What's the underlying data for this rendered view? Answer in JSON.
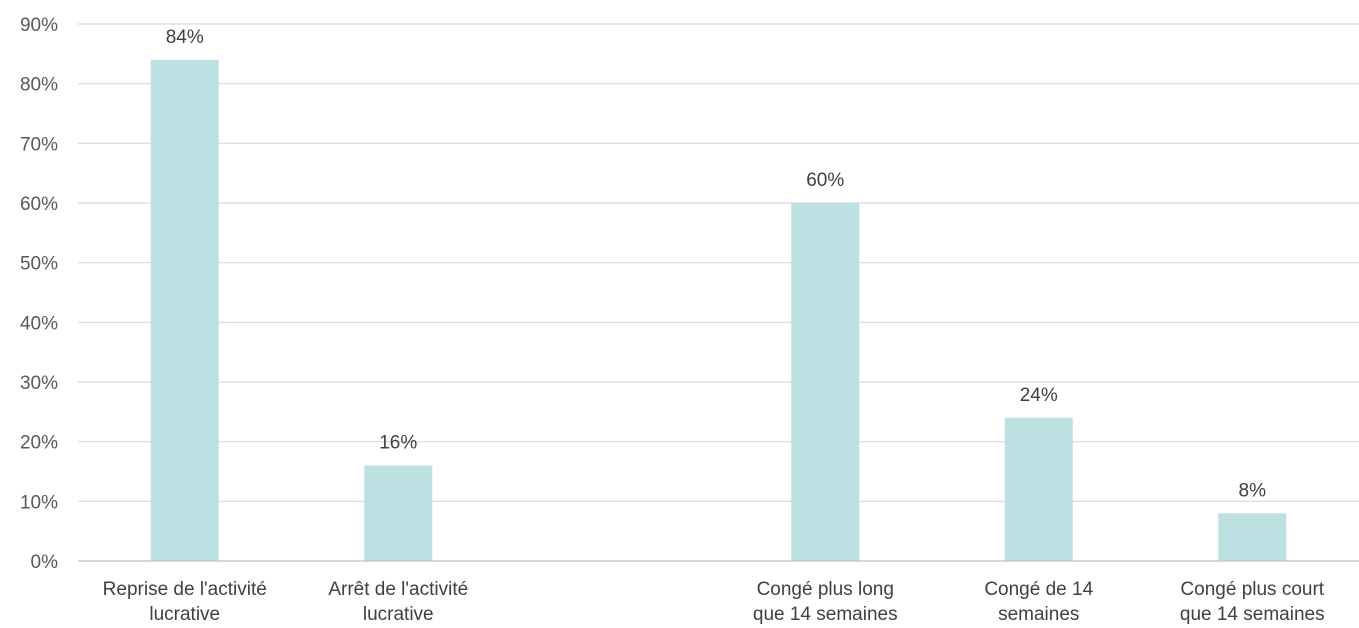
{
  "chart_data": {
    "type": "bar",
    "title": "",
    "xlabel": "",
    "ylabel": "",
    "ylim": [
      0,
      90
    ],
    "y_ticks": [
      0,
      10,
      20,
      30,
      40,
      50,
      60,
      70,
      80,
      90
    ],
    "y_tick_labels": [
      "0%",
      "10%",
      "20%",
      "30%",
      "40%",
      "50%",
      "60%",
      "70%",
      "80%",
      "90%"
    ],
    "grid": true,
    "legend": "none",
    "bar_color": "#bde0e3",
    "categories": [
      [
        "Reprise de l'activité",
        "lucrative"
      ],
      [
        "Arrêt de l'activité",
        "lucrative"
      ],
      [
        "",
        ""
      ],
      [
        "Congé plus long",
        "que 14 semaines"
      ],
      [
        "Congé de 14",
        "semaines"
      ],
      [
        "Congé plus court",
        "que 14 semaines"
      ]
    ],
    "values": [
      84,
      16,
      null,
      60,
      24,
      8
    ],
    "data_labels": [
      "84%",
      "16%",
      "",
      "60%",
      "24%",
      "8%"
    ]
  }
}
